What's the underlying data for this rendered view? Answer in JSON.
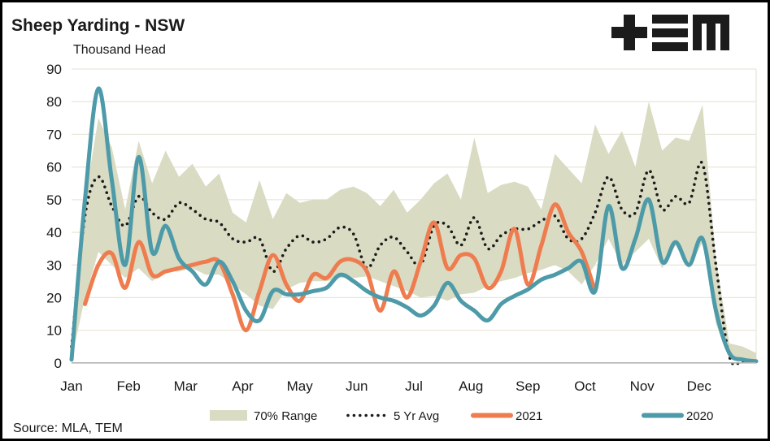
{
  "header": {
    "title": "Sheep Yarding - NSW",
    "units_label": "Thousand Head",
    "logo_name": "tem-logo"
  },
  "footer": {
    "source": "Source: MLA, TEM"
  },
  "chart_data": {
    "type": "line",
    "title": "Sheep Yarding - NSW",
    "ylabel": "Thousand Head",
    "xlabel": "",
    "ylim": [
      0,
      90
    ],
    "ytick_step": 10,
    "grid": "horizontal",
    "legend_position": "bottom",
    "yticks": [
      "90",
      "80",
      "70",
      "60",
      "50",
      "40",
      "30",
      "20",
      "10",
      "0"
    ],
    "x_months": [
      "Jan",
      "Feb",
      "Mar",
      "Apr",
      "May",
      "Jun",
      "Jul",
      "Aug",
      "Sep",
      "Oct",
      "Nov",
      "Dec"
    ],
    "weeks": 52,
    "colors": {
      "band": "#d9dbc3",
      "avg": "#1a1a1a",
      "y2021": "#ef7c4e",
      "y2020": "#4d9aa9",
      "grid": "#e9e7da",
      "axis": "#b3b3b3"
    },
    "series": [
      {
        "name": "70% Range",
        "type": "band",
        "color": "#d9dbc3",
        "upper": [
          8,
          50,
          75,
          66,
          47,
          68,
          55,
          65,
          57,
          61,
          54,
          58,
          46,
          43,
          56,
          44,
          52,
          49,
          50,
          50,
          53,
          54,
          52,
          48,
          53,
          46,
          50,
          55,
          58,
          50,
          69,
          52,
          54.5,
          55.5,
          54,
          47,
          64,
          59.5,
          55,
          73,
          64,
          71,
          60,
          80,
          65,
          69,
          68,
          79,
          32,
          6,
          5,
          3
        ],
        "lower": [
          1,
          20,
          34,
          30,
          26,
          29,
          25,
          28,
          28,
          29,
          27,
          27,
          24,
          21,
          17.5,
          16.5,
          22.5,
          24.5,
          25,
          25,
          26,
          26,
          26.5,
          25,
          23.5,
          22,
          20,
          20.5,
          19,
          21,
          21.5,
          23.5,
          25,
          26,
          27.5,
          28.5,
          30,
          28,
          24,
          30,
          38,
          30,
          34,
          38,
          29,
          36,
          29,
          37,
          12,
          1,
          0.5,
          0.3
        ]
      },
      {
        "name": "5 Yr Avg",
        "type": "dotted-line",
        "color": "#1a1a1a",
        "values": [
          5,
          45,
          57,
          48,
          42,
          51,
          46,
          44,
          49,
          47,
          44,
          43,
          38,
          37,
          38,
          28,
          35,
          39,
          37,
          38,
          41.5,
          39.5,
          29,
          36,
          38.5,
          34,
          30,
          42,
          42,
          36,
          44.5,
          35,
          39,
          41,
          41,
          43.5,
          45,
          38,
          38,
          46,
          57,
          47,
          46,
          59,
          47,
          51,
          49,
          61,
          30,
          2,
          0.5,
          0.3
        ]
      },
      {
        "name": "2021",
        "type": "line",
        "color": "#ef7c4e",
        "values": [
          null,
          18,
          30,
          33.5,
          23,
          37,
          27,
          28,
          29,
          30,
          31,
          31,
          21,
          10,
          22,
          33,
          24,
          19,
          27,
          26,
          31,
          31.5,
          28,
          16,
          28,
          20,
          31,
          43,
          29,
          33,
          32,
          23,
          28,
          41,
          24,
          36,
          48.5,
          40,
          34,
          22,
          null,
          null,
          null,
          null,
          null,
          null,
          null,
          null,
          null,
          null,
          null,
          null
        ]
      },
      {
        "name": "2020",
        "type": "line",
        "color": "#4d9aa9",
        "values": [
          1,
          50,
          84,
          56,
          30,
          63,
          34,
          42,
          32,
          28,
          24,
          31,
          25,
          16,
          13,
          22,
          21,
          21,
          22,
          23,
          27,
          25,
          22,
          20,
          19,
          17,
          14.5,
          17.5,
          24.5,
          19,
          16,
          13,
          18,
          20.5,
          22.5,
          25.5,
          27,
          29,
          31,
          22,
          48,
          29,
          38,
          50,
          31,
          37,
          30,
          38,
          16,
          3,
          1,
          0.5
        ]
      }
    ],
    "legend": [
      {
        "label": "70% Range",
        "swatch": "band"
      },
      {
        "label": "5 Yr Avg",
        "swatch": "dotted"
      },
      {
        "label": "2021",
        "swatch": "orange-line"
      },
      {
        "label": "2020",
        "swatch": "teal-line"
      }
    ]
  }
}
